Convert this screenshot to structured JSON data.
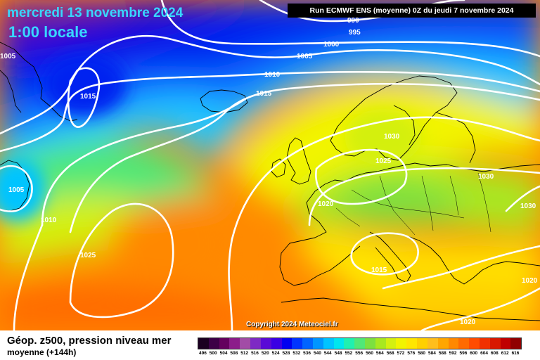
{
  "title": {
    "date": "mercredi 13 novembre 2024",
    "time": "1:00 locale"
  },
  "run_info": "Run ECMWF ENS (moyenne) 0Z du jeudi 7 novembre 2024",
  "copyright": "Copyright 2024 Meteociel.fr",
  "caption": {
    "main": "Géop. z500, pression niveau mer",
    "sub": "moyenne  (+144h)"
  },
  "isobar_labels": [
    "990",
    "995",
    "1000",
    "1005",
    "1010",
    "1015",
    "1015",
    "1005",
    "1005",
    "1010",
    "1025",
    "1030",
    "1025",
    "1030",
    "1020",
    "1030",
    "1015",
    "1020",
    "1020"
  ],
  "legend": {
    "labels": [
      "496",
      "500",
      "504",
      "508",
      "512",
      "516",
      "520",
      "524",
      "528",
      "532",
      "536",
      "540",
      "544",
      "548",
      "552",
      "556",
      "560",
      "564",
      "568",
      "572",
      "576",
      "580",
      "584",
      "588",
      "592",
      "596",
      "600",
      "604",
      "608",
      "612",
      "616"
    ],
    "colors": [
      "#1a0020",
      "#3c0046",
      "#64005e",
      "#8c1c8a",
      "#a24ca6",
      "#7e2ac4",
      "#5a0ad6",
      "#3a00e4",
      "#0000f0",
      "#0034ff",
      "#0064ff",
      "#0096ff",
      "#00c4ff",
      "#00e6ee",
      "#20f0b0",
      "#50e878",
      "#7ce040",
      "#a8e820",
      "#d4f010",
      "#f2f400",
      "#ffe600",
      "#ffd000",
      "#ffbe1c",
      "#ffa600",
      "#ff8800",
      "#ff6a00",
      "#ff4c00",
      "#f03000",
      "#d81800",
      "#c00000",
      "#900000"
    ]
  },
  "colors": {
    "title": "#38d7ff",
    "isobar": "#ffffff",
    "land_outline": "#000000"
  }
}
